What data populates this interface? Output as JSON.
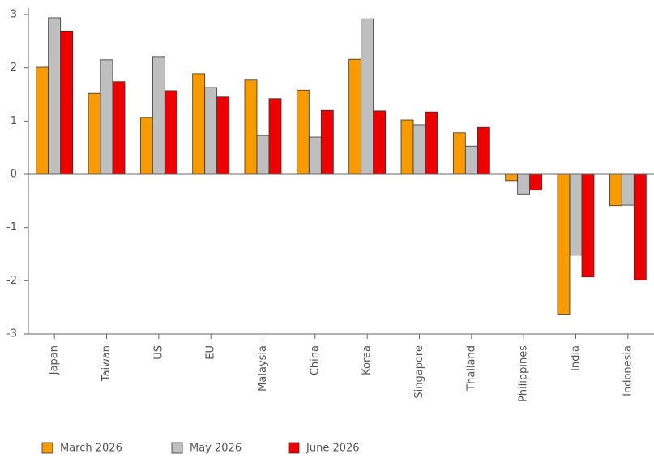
{
  "chart_data": {
    "type": "bar",
    "categories": [
      "Japan",
      "Taiwan",
      "US",
      "EU",
      "Malaysia",
      "China",
      "Korea",
      "Singapore",
      "Thailand",
      "Philippines",
      "India",
      "Indonesia"
    ],
    "series": [
      {
        "name": "March 2026",
        "color": "#f89b00",
        "values": [
          2.01,
          1.52,
          1.07,
          1.89,
          1.77,
          1.58,
          2.16,
          1.02,
          0.78,
          -0.12,
          -2.63,
          -0.59
        ]
      },
      {
        "name": "May 2026",
        "color": "#bfbfbf",
        "values": [
          2.94,
          2.15,
          2.21,
          1.63,
          0.73,
          0.7,
          2.92,
          0.93,
          0.53,
          -0.37,
          -1.52,
          -0.58
        ]
      },
      {
        "name": "June 2026",
        "color": "#ee0000",
        "values": [
          2.69,
          1.74,
          1.57,
          1.45,
          1.42,
          1.2,
          1.19,
          1.17,
          0.88,
          -0.3,
          -1.93,
          -1.99
        ]
      }
    ],
    "ylim": [
      -3,
      3
    ],
    "yticks": [
      -3,
      -2,
      -1,
      0,
      1,
      2,
      3
    ],
    "grid": false,
    "legend": "bottom"
  }
}
